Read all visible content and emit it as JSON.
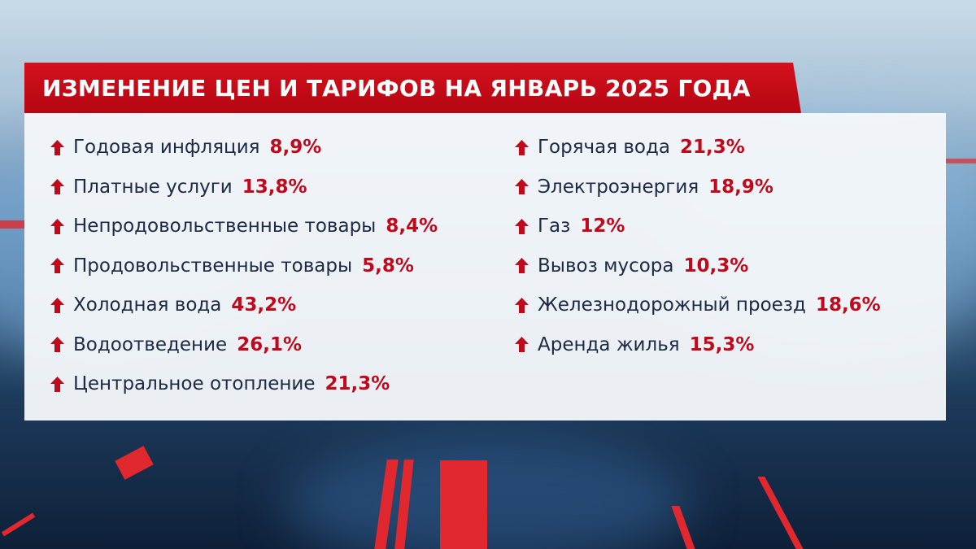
{
  "title": "ИЗМЕНЕНИЕ ЦЕН И ТАРИФОВ НА ЯНВАРЬ 2025 ГОДА",
  "colors": {
    "accent": "#c1091c",
    "banner": "#c60b18",
    "text": "#1e2a44"
  },
  "left_items": [
    {
      "label": "Годовая инфляция",
      "value": "8,9%",
      "icon": "up-arrow-icon"
    },
    {
      "label": "Платные услуги",
      "value": "13,8%",
      "icon": "up-arrow-icon"
    },
    {
      "label": "Непродовольственные товары",
      "value": "8,4%",
      "icon": "up-arrow-icon"
    },
    {
      "label": "Продовольственные товары",
      "value": "5,8%",
      "icon": "up-arrow-icon"
    },
    {
      "label": "Холодная вода",
      "value": "43,2%",
      "icon": "up-arrow-icon"
    },
    {
      "label": "Водоотведение",
      "value": "26,1%",
      "icon": "up-arrow-icon"
    },
    {
      "label": "Центральное отопление",
      "value": "21,3%",
      "icon": "up-arrow-icon"
    }
  ],
  "right_items": [
    {
      "label": "Горячая вода",
      "value": "21,3%",
      "icon": "up-arrow-icon"
    },
    {
      "label": "Электроэнергия",
      "value": "18,9%",
      "icon": "up-arrow-icon"
    },
    {
      "label": "Газ",
      "value": "12%",
      "icon": "up-arrow-icon"
    },
    {
      "label": "Вывоз мусора",
      "value": "10,3%",
      "icon": "up-arrow-icon"
    },
    {
      "label": "Железнодорожный проезд",
      "value": "18,6%",
      "icon": "up-arrow-icon"
    },
    {
      "label": "Аренда жилья",
      "value": "15,3%",
      "icon": "up-arrow-icon"
    }
  ]
}
